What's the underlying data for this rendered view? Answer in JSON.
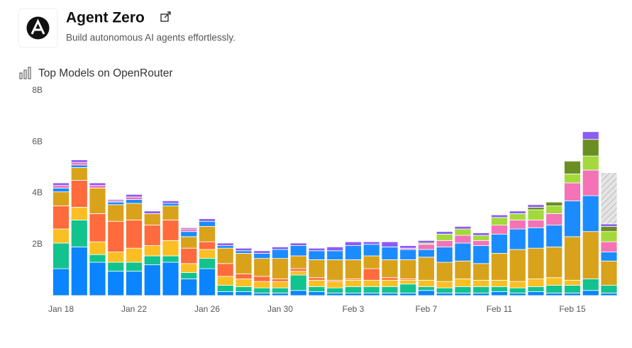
{
  "header": {
    "title": "Agent Zero",
    "subtitle": "Build autonomous AI agents effortlessly."
  },
  "chart_data": {
    "type": "stacked_bar",
    "title": "Top Models on OpenRouter",
    "categories": [
      "Jan 18",
      null,
      null,
      null,
      "Jan 22",
      null,
      null,
      null,
      "Jan 26",
      null,
      null,
      null,
      "Jan 30",
      null,
      null,
      null,
      "Feb 3",
      null,
      null,
      null,
      "Feb 7",
      null,
      null,
      null,
      "Feb 11",
      null,
      null,
      null,
      "Feb 15",
      null,
      null
    ],
    "ylim": [
      0,
      8
    ],
    "yticks": [
      {
        "value": 2,
        "label": "2B"
      },
      {
        "value": 4,
        "label": "4B"
      },
      {
        "value": 6,
        "label": "6B"
      },
      {
        "value": 8,
        "label": "8B"
      }
    ],
    "series": [
      {
        "color": "#0a84ff",
        "values": [
          1.05,
          1.9,
          1.3,
          0.95,
          0.95,
          1.2,
          1.3,
          0.65,
          1.05,
          0.15,
          0.15,
          0.1,
          0.1,
          0.2,
          0.15,
          0.1,
          0.1,
          0.1,
          0.1,
          0.1,
          0.2,
          0.1,
          0.1,
          0.1,
          0.15,
          0.1,
          0.15,
          0.1,
          0.1,
          0.2,
          0.1
        ]
      },
      {
        "color": "#12c38e",
        "values": [
          1.0,
          1.05,
          0.3,
          0.35,
          0.35,
          0.35,
          0.25,
          0.25,
          0.4,
          0.25,
          0.2,
          0.2,
          0.2,
          0.6,
          0.2,
          0.2,
          0.25,
          0.25,
          0.25,
          0.35,
          0.15,
          0.2,
          0.25,
          0.25,
          0.2,
          0.2,
          0.2,
          0.3,
          0.3,
          0.45,
          0.3
        ]
      },
      {
        "color": "#fbbf24",
        "values": [
          0.55,
          0.5,
          0.5,
          0.4,
          0.55,
          0.4,
          0.6,
          0.35,
          0.35,
          0.35,
          0.3,
          0.25,
          0.25,
          0.15,
          0.25,
          0.25,
          0.25,
          0.25,
          0.25,
          0.15,
          0.25,
          0.25,
          0.3,
          0.25,
          0.25,
          0.25,
          0.3,
          0.3,
          0.2,
          0,
          0
        ]
      },
      {
        "color": "#ff6b3d",
        "values": [
          0.9,
          1.05,
          1.1,
          1.2,
          1.1,
          0.8,
          0.8,
          0.6,
          0.3,
          0.5,
          0.2,
          0.2,
          0.1,
          0.1,
          0.1,
          0.05,
          0.05,
          0.45,
          0.1,
          0.05,
          0,
          0,
          0,
          0,
          0,
          0,
          0,
          0,
          0,
          0,
          0
        ]
      },
      {
        "color": "#d9a21b",
        "values": [
          0.55,
          0.5,
          1.0,
          0.65,
          0.65,
          0.45,
          0.55,
          0.45,
          0.6,
          0.6,
          0.8,
          0.7,
          0.8,
          0.5,
          0.7,
          0.8,
          0.75,
          0.5,
          0.7,
          0.75,
          0.9,
          0.75,
          0.7,
          0.65,
          1.05,
          1.25,
          1.2,
          1.2,
          1.7,
          1.85,
          0.95
        ]
      },
      {
        "color": "#1a8cff",
        "values": [
          0.15,
          0.1,
          0,
          0.1,
          0.15,
          0,
          0.1,
          0.2,
          0.2,
          0.1,
          0.1,
          0.2,
          0.35,
          0.4,
          0.35,
          0.35,
          0.55,
          0.45,
          0.5,
          0.4,
          0.3,
          0.6,
          0.7,
          0.7,
          0.75,
          0.8,
          0.8,
          0.85,
          1.4,
          1.4,
          0.35
        ]
      },
      {
        "color": "#f472b6",
        "values": [
          0.1,
          0.1,
          0.1,
          0.05,
          0.1,
          0,
          0,
          0.1,
          0,
          0,
          0,
          0,
          0,
          0,
          0,
          0,
          0,
          0,
          0,
          0.05,
          0.2,
          0.25,
          0.3,
          0.2,
          0.35,
          0.35,
          0.3,
          0.45,
          0.7,
          1.0,
          0.4
        ]
      },
      {
        "color": "#a3d93b",
        "values": [
          0,
          0,
          0,
          0,
          0,
          0,
          0,
          0,
          0,
          0,
          0,
          0,
          0,
          0,
          0,
          0,
          0,
          0,
          0,
          0,
          0.05,
          0.25,
          0.25,
          0.2,
          0.3,
          0.25,
          0.4,
          0.3,
          0.35,
          0.55,
          0.4
        ]
      },
      {
        "color": "#6b8e23",
        "values": [
          0,
          0,
          0,
          0,
          0,
          0,
          0,
          0,
          0,
          0,
          0,
          0,
          0,
          0,
          0,
          0,
          0,
          0,
          0,
          0,
          0,
          0,
          0,
          0,
          0,
          0,
          0.1,
          0.15,
          0.5,
          0.65,
          0.2
        ]
      },
      {
        "color": "#8b5cf6",
        "values": [
          0.1,
          0.1,
          0.1,
          0.05,
          0.1,
          0.1,
          0.1,
          0.05,
          0.1,
          0.1,
          0.1,
          0.1,
          0.1,
          0.1,
          0.1,
          0.15,
          0.15,
          0.1,
          0.2,
          0.1,
          0.1,
          0.1,
          0.1,
          0.1,
          0.1,
          0.1,
          0.1,
          0,
          0,
          0.3,
          0.1
        ]
      },
      {
        "color": "#cccccc",
        "pattern": "hatch",
        "values": [
          null,
          null,
          null,
          null,
          null,
          null,
          null,
          null,
          null,
          null,
          null,
          null,
          null,
          null,
          null,
          null,
          null,
          null,
          null,
          null,
          null,
          null,
          null,
          null,
          null,
          null,
          null,
          null,
          null,
          null,
          2.0
        ]
      }
    ]
  }
}
